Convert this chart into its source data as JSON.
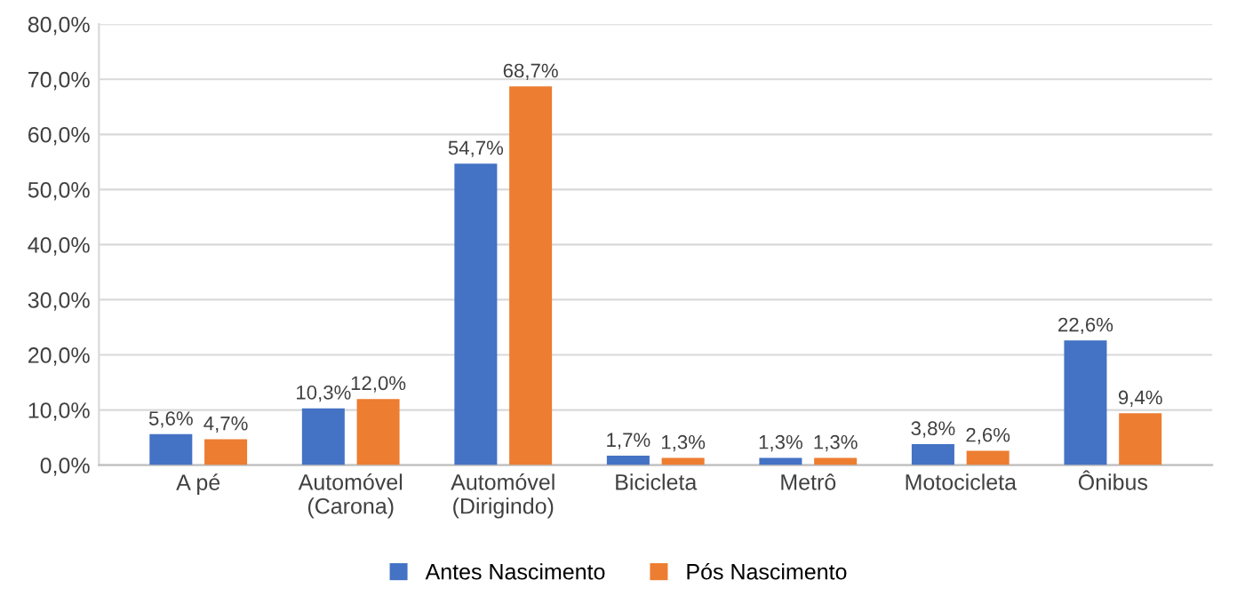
{
  "chart_data": {
    "type": "bar",
    "categories": [
      "A pé",
      "Automóvel\n(Carona)",
      "Automóvel\n(Dirigindo)",
      "Bicicleta",
      "Metrô",
      "Motocicleta",
      "Ônibus"
    ],
    "series": [
      {
        "name": "Antes Nascimento",
        "color": "#4472c4",
        "values": [
          5.6,
          10.3,
          54.7,
          1.7,
          1.3,
          3.8,
          22.6
        ],
        "value_labels": [
          "5,6%",
          "10,3%",
          "54,7%",
          "1,7%",
          "1,3%",
          "3,8%",
          "22,6%"
        ]
      },
      {
        "name": "Pós Nascimento",
        "color": "#ed7d31",
        "values": [
          4.7,
          12.0,
          68.7,
          1.3,
          1.3,
          2.6,
          9.4
        ],
        "value_labels": [
          "4,7%",
          "12,0%",
          "68,7%",
          "1,3%",
          "1,3%",
          "2,6%",
          "9,4%"
        ]
      }
    ],
    "ylim": [
      0,
      80
    ],
    "yticks": [
      {
        "value": 0,
        "label": "0,0%"
      },
      {
        "value": 10,
        "label": "10,0%"
      },
      {
        "value": 20,
        "label": "20,0%"
      },
      {
        "value": 30,
        "label": "30,0%"
      },
      {
        "value": 40,
        "label": "40,0%"
      },
      {
        "value": 50,
        "label": "50,0%"
      },
      {
        "value": 60,
        "label": "60,0%"
      },
      {
        "value": 70,
        "label": "70,0%"
      },
      {
        "value": 80,
        "label": "80,0%"
      }
    ],
    "grid": "y",
    "legend": "bottom"
  }
}
